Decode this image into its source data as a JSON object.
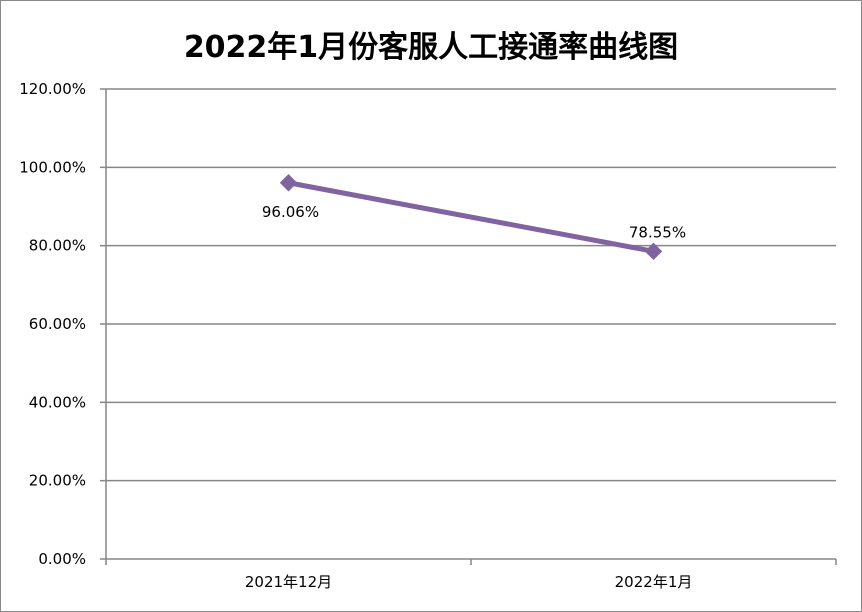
{
  "chart_data": {
    "type": "line",
    "title": "2022年1月份客服人工接通率曲线图",
    "xlabel": "",
    "ylabel": "",
    "categories": [
      "2021年12月",
      "2022年1月"
    ],
    "series": [
      {
        "values": [
          96.06,
          78.55
        ],
        "data_labels": [
          "96.06%",
          "78.55%"
        ],
        "color": "#8064a2",
        "marker": "diamond"
      }
    ],
    "ylim": [
      0,
      120
    ],
    "yticks": [
      0,
      20,
      40,
      60,
      80,
      100,
      120
    ],
    "ytick_labels": [
      "0.00%",
      "20.00%",
      "40.00%",
      "60.00%",
      "80.00%",
      "100.00%",
      "120.00%"
    ],
    "grid": true,
    "legend": "none"
  }
}
